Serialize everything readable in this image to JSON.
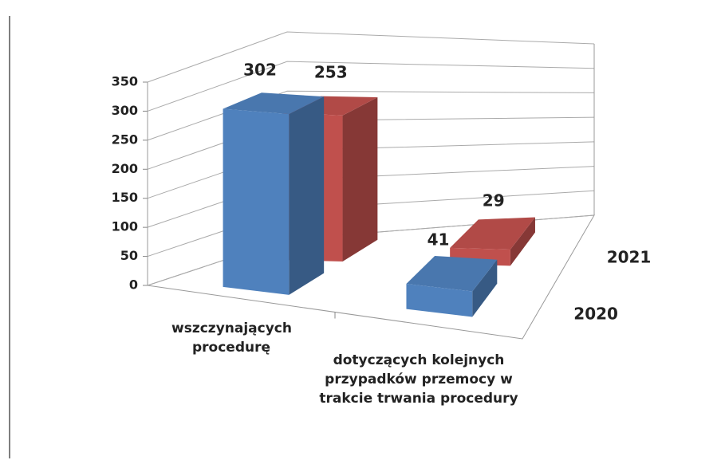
{
  "chart_data": {
    "type": "bar",
    "categories": [
      "wszczynających procedurę",
      "dotyczących kolejnych przypadków przemocy w trakcie trwania procedury"
    ],
    "series": [
      {
        "name": "2020",
        "color": "#4f81bd",
        "values": [
          302,
          41
        ]
      },
      {
        "name": "2021",
        "color": "#c0504d",
        "values": [
          253,
          29
        ]
      }
    ],
    "ylim": [
      0,
      350
    ],
    "yticks": [
      0,
      50,
      100,
      150,
      200,
      250,
      300,
      350
    ],
    "grid": true
  }
}
